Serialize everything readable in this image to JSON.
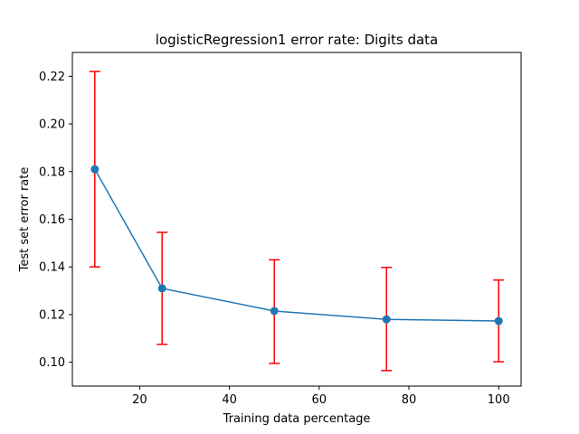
{
  "chart_data": {
    "type": "line",
    "title": "logisticRegression1 error rate: Digits data",
    "xlabel": "Training data percentage",
    "ylabel": "Test set error rate",
    "xlim": [
      5,
      105
    ],
    "ylim": [
      0.09,
      0.23
    ],
    "xticks": [
      20,
      40,
      60,
      80,
      100
    ],
    "yticks": [
      0.1,
      0.12,
      0.14,
      0.16,
      0.18,
      0.2,
      0.22
    ],
    "xtick_labels": [
      "20",
      "40",
      "60",
      "80",
      "100"
    ],
    "ytick_labels": [
      "0.10",
      "0.12",
      "0.14",
      "0.16",
      "0.18",
      "0.20",
      "0.22"
    ],
    "grid": false,
    "legend": "none",
    "series": [
      {
        "x": [
          10,
          25,
          50,
          75,
          100
        ],
        "y": [
          0.181,
          0.131,
          0.1215,
          0.118,
          0.1173
        ],
        "error_low": [
          0.14,
          0.1075,
          0.0995,
          0.0965,
          0.1002
        ],
        "error_high": [
          0.222,
          0.1545,
          0.143,
          0.1398,
          0.1345
        ],
        "line_color": "#1f77b4",
        "error_color": "#ff0000",
        "marker": "circle"
      }
    ]
  }
}
